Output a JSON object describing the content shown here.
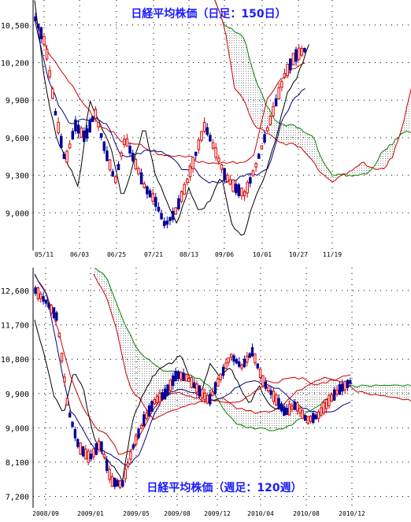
{
  "chart_data": [
    {
      "type": "candlestick",
      "title": "日経平均株価（日足：150日）",
      "ylim": [
        8700,
        10700
      ],
      "y_ticks": [
        9000,
        9300,
        9600,
        9900,
        10200,
        10500
      ],
      "y_tick_labels": [
        "9,000",
        "9,300",
        "9,600",
        "9,900",
        "10,200",
        "10,500"
      ],
      "x_tick_labels": [
        "05/11",
        "06/03",
        "06/25",
        "07/21",
        "08/13",
        "09/06",
        "10/01",
        "10/27",
        "11/19"
      ],
      "grid": true,
      "series": [
        {
          "role": "price",
          "anchors": [
            10550,
            10350,
            9800,
            9400,
            9700,
            9600,
            9800,
            9500,
            9250,
            9600,
            9400,
            9200,
            9100,
            8900,
            9000,
            9200,
            9450,
            9700,
            9500,
            9300,
            9200,
            9150,
            9350,
            9600,
            9850,
            10100,
            10250,
            10300
          ]
        },
        {
          "role": "conversion-line",
          "color": "#000080",
          "anchors": [
            10550,
            10100,
            9850,
            9700,
            9750,
            9750,
            9700,
            9450,
            9450,
            9500,
            9500,
            9450,
            9350,
            9350,
            9250,
            9250,
            9250,
            9300,
            9300,
            9350,
            9700,
            9900,
            10000
          ]
        },
        {
          "role": "base-line",
          "color": "#cc0000",
          "anchors": [
            10550,
            10300,
            10150,
            10000,
            9850,
            9700,
            9650,
            9550,
            9550,
            9500,
            9450,
            9450,
            9450,
            9400,
            9400,
            9400,
            9400,
            9450,
            9900,
            10050,
            10150,
            10200
          ]
        },
        {
          "role": "lagging-span",
          "color": "#000000",
          "anchors": [
            10700,
            10000,
            9600,
            9400,
            9200,
            9900,
            9700,
            9500,
            9100,
            9400,
            9700,
            9300,
            9100,
            8900,
            9200,
            9000,
            9100,
            9300,
            8900,
            8800,
            9100,
            9300,
            9600,
            9950,
            10100,
            10350
          ]
        },
        {
          "role": "leading-span-1",
          "color": "#cc0000",
          "anchors": [
            10700,
            10500,
            10000,
            9900,
            9700,
            9650,
            9600,
            9550,
            9550,
            9500,
            9400,
            9300,
            9250,
            9300,
            9350,
            9400,
            9350,
            9350,
            9450,
            9700,
            10050
          ]
        },
        {
          "role": "leading-span-2",
          "color": "#008000",
          "anchors": [
            10700,
            10500,
            10450,
            10400,
            10100,
            9900,
            9750,
            9700,
            9700,
            9650,
            9600,
            9400,
            9300,
            9300,
            9300,
            9300,
            9350,
            9500,
            9550,
            9650,
            9650
          ]
        }
      ]
    },
    {
      "type": "candlestick",
      "title": "日経平均株価（週足：120週）",
      "ylim": [
        6900,
        13200
      ],
      "y_ticks": [
        7200,
        8100,
        9000,
        9900,
        10800,
        11700,
        12600
      ],
      "y_tick_labels": [
        "7,200",
        "8,100",
        "9,000",
        "9,900",
        "10,800",
        "11,700",
        "12,600"
      ],
      "x_tick_labels": [
        "2008/09",
        "2009/01",
        "2009/05",
        "2009/08",
        "2009/12",
        "2010/04",
        "2010/08",
        "2010/12"
      ],
      "grid": true,
      "series": [
        {
          "role": "price",
          "anchors": [
            12600,
            12300,
            11900,
            9500,
            8500,
            8200,
            8600,
            7600,
            7500,
            8500,
            9200,
            9700,
            9900,
            10400,
            10300,
            10000,
            9700,
            10300,
            10900,
            10600,
            11000,
            10200,
            9800,
            9400,
            9600,
            9200,
            9300,
            9700,
            10000,
            10200
          ]
        },
        {
          "role": "conversion-line",
          "color": "#000080",
          "anchors": [
            13000,
            12500,
            11000,
            9500,
            9000,
            8500,
            8400,
            8200,
            8000,
            8300,
            9200,
            9800,
            10000,
            10000,
            9900,
            9700,
            9800,
            10000,
            10200,
            10200,
            10100,
            10000,
            9700,
            9500,
            9400,
            9400,
            9500,
            9700
          ]
        },
        {
          "role": "base-line",
          "color": "#cc0000",
          "anchors": [
            13000,
            12500,
            11500,
            10300,
            9500,
            9000,
            8800,
            8300,
            8400,
            9000,
            9600,
            9900,
            9900,
            9800,
            9700,
            9700,
            9700,
            9700,
            9900,
            10200,
            10200,
            10300,
            10300,
            10100,
            10200,
            10300,
            10400
          ]
        },
        {
          "role": "lagging-span",
          "color": "#000000",
          "anchors": [
            11800,
            10900,
            9800,
            9400,
            10500,
            10000,
            8800,
            8300,
            8000,
            7600,
            9200,
            9800,
            10300,
            10600,
            10700,
            10900,
            10200,
            9900,
            10700,
            10300,
            10600,
            10100,
            9600,
            10100,
            9600,
            9500
          ]
        },
        {
          "role": "leading-span-1",
          "color": "#cc0000",
          "anchors": [
            13000,
            12500,
            11500,
            10100,
            9700,
            9200,
            9400,
            9500,
            9600,
            9700,
            9700,
            9800,
            9500,
            9450,
            9400,
            9450,
            9600,
            9900,
            10100,
            10300,
            10300,
            10200,
            10000,
            9900,
            9850,
            9800,
            9750,
            9700
          ]
        },
        {
          "role": "leading-span-2",
          "color": "#008000",
          "anchors": [
            13200,
            13000,
            12200,
            11500,
            10900,
            10700,
            10500,
            10500,
            10400,
            10300,
            10000,
            9500,
            9100,
            9000,
            9000,
            8950,
            9000,
            9100,
            9400,
            9600,
            9800,
            10000,
            10100,
            10100,
            10100,
            10100,
            10100,
            10100
          ]
        }
      ]
    }
  ]
}
